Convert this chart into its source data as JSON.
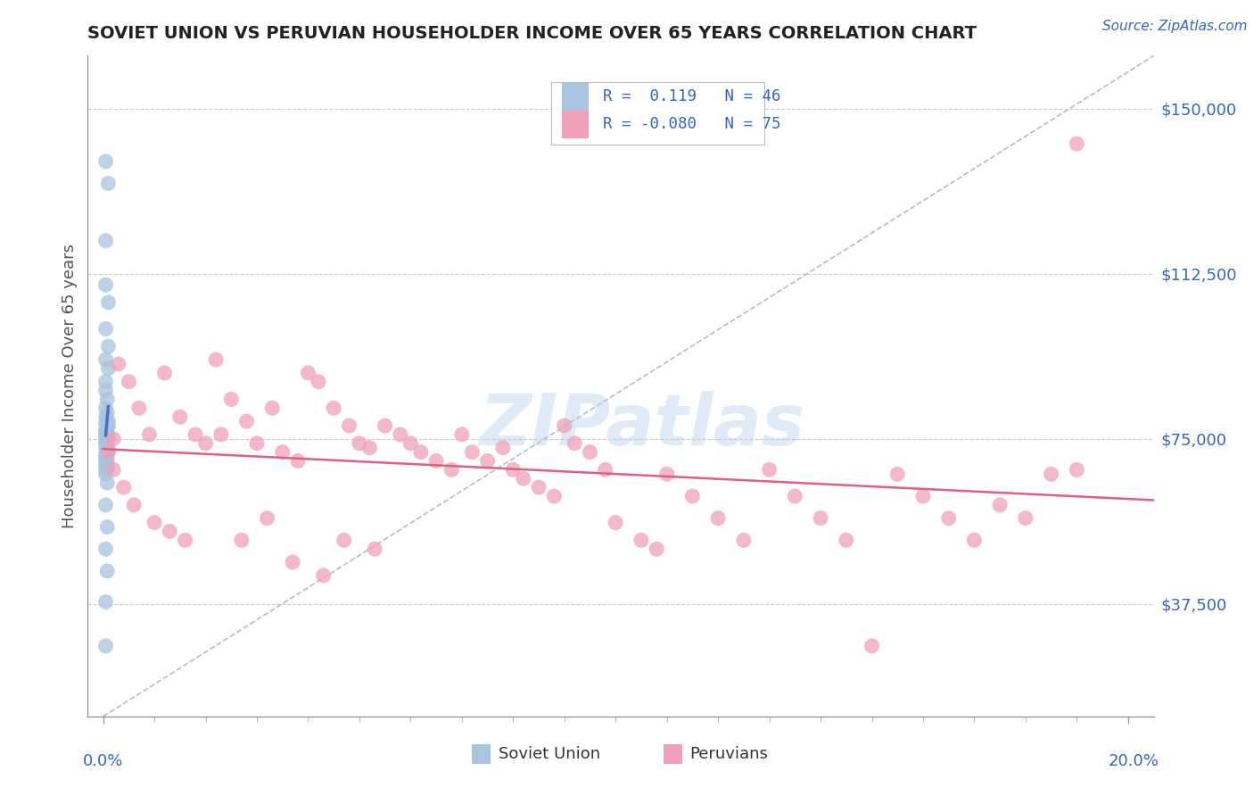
{
  "title": "SOVIET UNION VS PERUVIAN HOUSEHOLDER INCOME OVER 65 YEARS CORRELATION CHART",
  "source": "Source: ZipAtlas.com",
  "ylabel": "Householder Income Over 65 years",
  "xlabel_ticks": [
    "0.0%",
    "20.0%"
  ],
  "xlabel_vals": [
    0.0,
    0.2
  ],
  "ylabel_ticks": [
    "$37,500",
    "$75,000",
    "$112,500",
    "$150,000"
  ],
  "ylabel_vals": [
    37500,
    75000,
    112500,
    150000
  ],
  "xlim": [
    -0.003,
    0.205
  ],
  "ylim": [
    12000,
    162000
  ],
  "watermark": "ZIPatlas",
  "legend_soviet_R": "0.119",
  "legend_soviet_N": "46",
  "legend_peru_R": "-0.080",
  "legend_peru_N": "75",
  "soviet_color": "#a8c4e0",
  "peruvian_color": "#f0a0b8",
  "soviet_line_color": "#4472c4",
  "peruvian_line_color": "#e06080",
  "diagonal_color": "#b0bcd0",
  "background_color": "#ffffff",
  "soviet_x": [
    0.0005,
    0.001,
    0.0005,
    0.0005,
    0.001,
    0.0005,
    0.001,
    0.0005,
    0.001,
    0.0005,
    0.0005,
    0.0008,
    0.0005,
    0.0008,
    0.0005,
    0.001,
    0.0005,
    0.001,
    0.0008,
    0.0005,
    0.0005,
    0.0008,
    0.0005,
    0.001,
    0.0005,
    0.0005,
    0.0008,
    0.0005,
    0.001,
    0.0008,
    0.0005,
    0.0005,
    0.0008,
    0.0005,
    0.0008,
    0.0005,
    0.0008,
    0.0005,
    0.0005,
    0.0008,
    0.0005,
    0.0008,
    0.0005,
    0.0008,
    0.0005,
    0.0005
  ],
  "soviet_y": [
    138000,
    133000,
    120000,
    110000,
    106000,
    100000,
    96000,
    93000,
    91000,
    88000,
    86000,
    84000,
    82000,
    81000,
    80000,
    79000,
    78500,
    78000,
    77500,
    77000,
    76500,
    76000,
    75500,
    75000,
    74500,
    74000,
    73500,
    73000,
    72500,
    72000,
    71500,
    71000,
    70500,
    70000,
    69500,
    69000,
    68500,
    68000,
    67000,
    65000,
    60000,
    55000,
    50000,
    45000,
    38000,
    28000
  ],
  "peru_x": [
    0.001,
    0.002,
    0.003,
    0.005,
    0.007,
    0.009,
    0.012,
    0.015,
    0.018,
    0.02,
    0.022,
    0.025,
    0.028,
    0.03,
    0.033,
    0.035,
    0.038,
    0.04,
    0.042,
    0.045,
    0.048,
    0.05,
    0.052,
    0.055,
    0.058,
    0.06,
    0.062,
    0.065,
    0.068,
    0.07,
    0.072,
    0.075,
    0.078,
    0.08,
    0.082,
    0.085,
    0.088,
    0.09,
    0.092,
    0.095,
    0.098,
    0.1,
    0.105,
    0.108,
    0.11,
    0.115,
    0.12,
    0.125,
    0.13,
    0.135,
    0.14,
    0.145,
    0.15,
    0.155,
    0.16,
    0.165,
    0.17,
    0.175,
    0.18,
    0.185,
    0.19,
    0.002,
    0.004,
    0.006,
    0.01,
    0.013,
    0.016,
    0.023,
    0.027,
    0.032,
    0.037,
    0.043,
    0.047,
    0.053,
    0.19
  ],
  "peru_y": [
    72000,
    75000,
    92000,
    88000,
    82000,
    76000,
    90000,
    80000,
    76000,
    74000,
    93000,
    84000,
    79000,
    74000,
    82000,
    72000,
    70000,
    90000,
    88000,
    82000,
    78000,
    74000,
    73000,
    78000,
    76000,
    74000,
    72000,
    70000,
    68000,
    76000,
    72000,
    70000,
    73000,
    68000,
    66000,
    64000,
    62000,
    78000,
    74000,
    72000,
    68000,
    56000,
    52000,
    50000,
    67000,
    62000,
    57000,
    52000,
    68000,
    62000,
    57000,
    52000,
    28000,
    67000,
    62000,
    57000,
    52000,
    60000,
    57000,
    67000,
    68000,
    68000,
    64000,
    60000,
    56000,
    54000,
    52000,
    76000,
    52000,
    57000,
    47000,
    44000,
    52000,
    50000,
    142000
  ]
}
